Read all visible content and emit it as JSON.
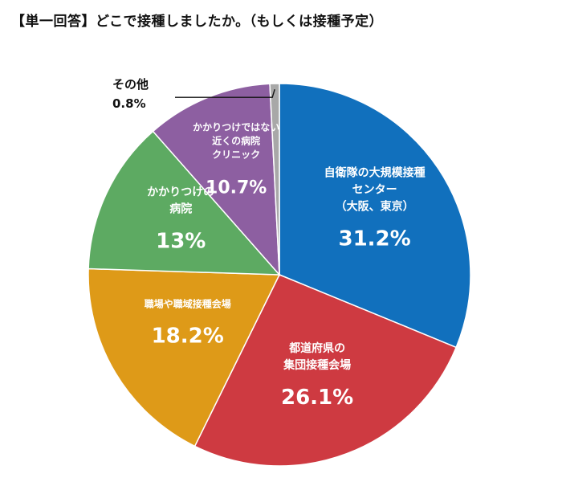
{
  "title": "【単一回答】どこで接種しましたか。（もしくは接種予定）",
  "chart_data": {
    "type": "pie",
    "start_angle_deg": 0,
    "direction": "clockwise",
    "slices": [
      {
        "label_lines": [
          "自衛隊の大規模接種",
          "センター",
          "（大阪、東京）"
        ],
        "value": 31.2,
        "value_text": "31.2%",
        "color": "#1170BD"
      },
      {
        "label_lines": [
          "都道府県の",
          "集団接種会場"
        ],
        "value": 26.1,
        "value_text": "26.1%",
        "color": "#CE3A41"
      },
      {
        "label_lines": [
          "職場や職域接種会場"
        ],
        "value": 18.2,
        "value_text": "18.2%",
        "color": "#DE9A18"
      },
      {
        "label_lines": [
          "かかりつけの",
          "病院"
        ],
        "value": 13,
        "value_text": "13%",
        "color": "#5DAA62"
      },
      {
        "label_lines": [
          "かかりつけではない",
          "近くの病院",
          "クリニック"
        ],
        "value": 10.7,
        "value_text": "10.7%",
        "color": "#8D5FA1"
      },
      {
        "label_lines": [
          "その他"
        ],
        "value": 0.8,
        "value_text": "0.8%",
        "color": "#A8A8A8"
      }
    ]
  }
}
